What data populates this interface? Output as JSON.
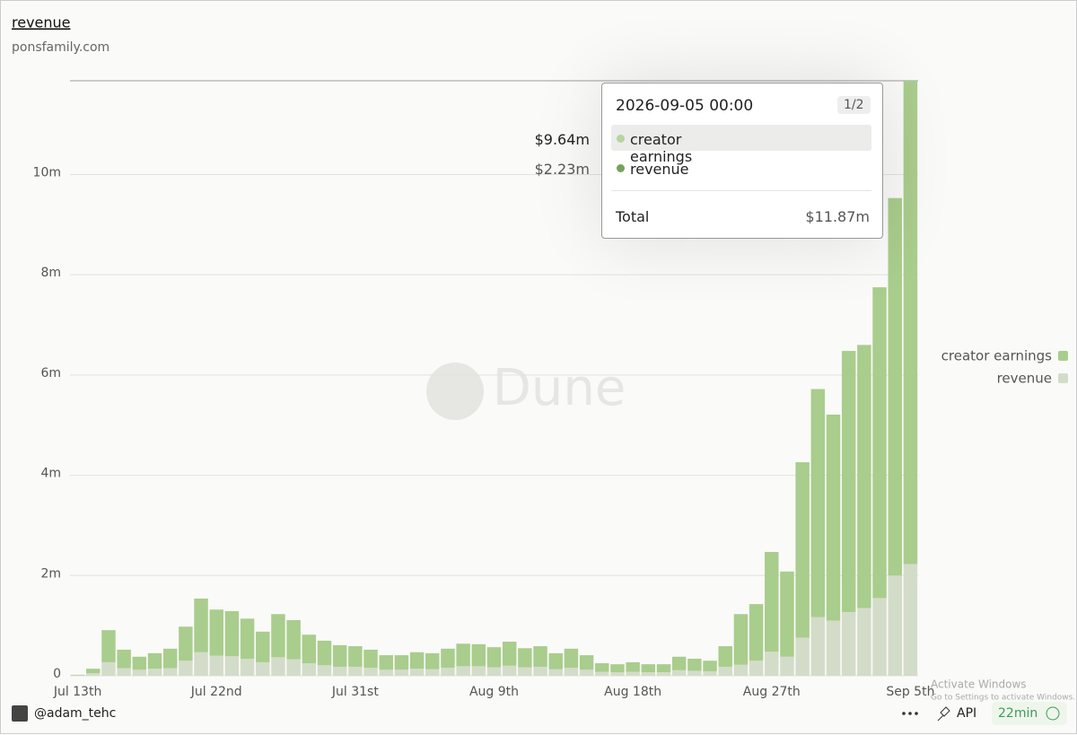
{
  "chart_data": {
    "type": "stacked_bar",
    "title": "revenue",
    "subtitle": "ponsfamily.com",
    "categories": [
      "Jul 13th",
      null,
      null,
      null,
      null,
      null,
      null,
      null,
      null,
      "Jul 22nd",
      null,
      null,
      null,
      null,
      null,
      null,
      null,
      null,
      "Jul 31st",
      null,
      null,
      null,
      null,
      null,
      null,
      null,
      null,
      "Aug 9th",
      null,
      null,
      null,
      null,
      null,
      null,
      null,
      null,
      "Aug 18th",
      null,
      null,
      null,
      null,
      null,
      null,
      null,
      null,
      "Aug 27th",
      null,
      null,
      null,
      null,
      null,
      null,
      null,
      null,
      "Sep 5th"
    ],
    "series": [
      {
        "name": "creator earnings",
        "color": "#a9cd8d",
        "values": [
          0.01,
          0.09,
          0.64,
          0.37,
          0.26,
          0.31,
          0.39,
          0.68,
          1.07,
          0.92,
          0.9,
          0.8,
          0.61,
          0.86,
          0.78,
          0.57,
          0.49,
          0.43,
          0.41,
          0.36,
          0.29,
          0.29,
          0.33,
          0.32,
          0.38,
          0.45,
          0.44,
          0.4,
          0.48,
          0.38,
          0.41,
          0.32,
          0.38,
          0.29,
          0.17,
          0.16,
          0.19,
          0.16,
          0.16,
          0.27,
          0.24,
          0.21,
          0.41,
          1.01,
          1.13,
          1.99,
          1.7,
          3.5,
          4.55,
          4.11,
          5.21,
          5.25,
          6.2,
          7.53,
          9.64
        ]
      },
      {
        "name": "revenue",
        "color": "#d3dcc9",
        "values": [
          0.01,
          0.05,
          0.27,
          0.15,
          0.12,
          0.14,
          0.15,
          0.3,
          0.47,
          0.4,
          0.39,
          0.34,
          0.27,
          0.37,
          0.33,
          0.25,
          0.21,
          0.18,
          0.18,
          0.16,
          0.12,
          0.12,
          0.14,
          0.13,
          0.16,
          0.19,
          0.19,
          0.17,
          0.2,
          0.17,
          0.18,
          0.13,
          0.16,
          0.12,
          0.08,
          0.07,
          0.08,
          0.07,
          0.07,
          0.11,
          0.1,
          0.09,
          0.18,
          0.22,
          0.3,
          0.48,
          0.38,
          0.76,
          1.17,
          1.1,
          1.27,
          1.35,
          1.55,
          2.0,
          2.23
        ]
      }
    ],
    "ylim": [
      0,
      11.87
    ],
    "yticks": [
      0,
      {
        "value": 2,
        "label": "2m"
      },
      {
        "value": 4,
        "label": "4m"
      },
      {
        "value": 6,
        "label": "6m"
      },
      {
        "value": 8,
        "label": "8m"
      },
      {
        "value": 10,
        "label": "10m"
      }
    ],
    "grid": true,
    "legend": "right",
    "tooltip": {
      "date": "2026-09-05 00:00",
      "page": "1/2",
      "rows": [
        {
          "name": "creator earnings",
          "color": "#b6d4a1",
          "label": "$9.64m"
        },
        {
          "name": "revenue",
          "color": "#78a160",
          "label": "$2.23m"
        }
      ],
      "total_name": "Total",
      "total_label": "$11.87m"
    }
  },
  "watermark": "Dune",
  "footer": {
    "author": "@adam_tehc",
    "api": "API",
    "age": "22min"
  },
  "overlay": {
    "title": "Activate Windows",
    "text": "Go to Settings to activate Windows."
  }
}
